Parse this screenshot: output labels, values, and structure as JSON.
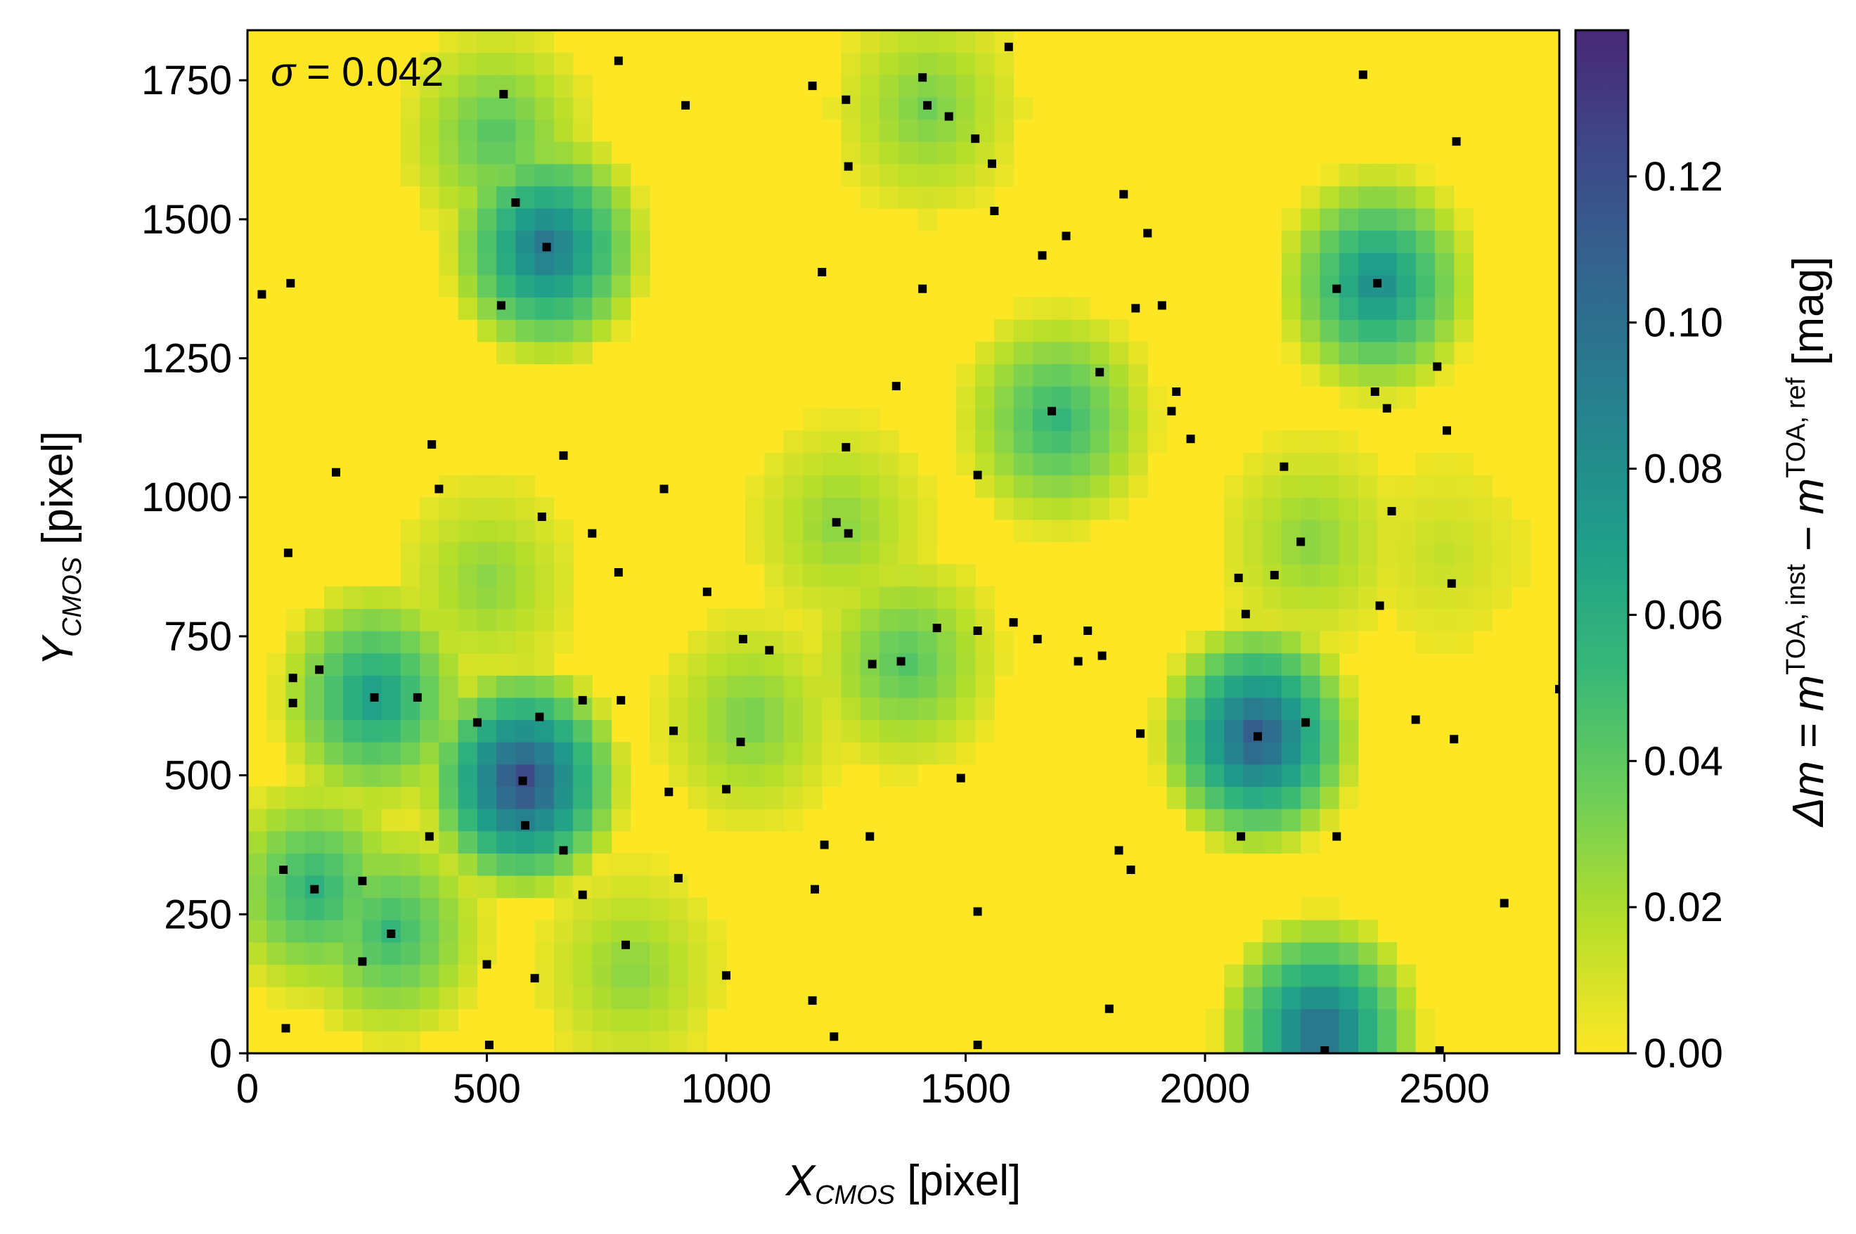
{
  "chart_data": {
    "type": "heatmap",
    "annotation": {
      "symbol": "σ",
      "text": " = 0.042"
    },
    "xlabel": {
      "main": "X",
      "sub": "CMOS",
      "rest": " [pixel]"
    },
    "ylabel": {
      "main": "Y",
      "sub": "CMOS",
      "rest": " [pixel]"
    },
    "xlim": [
      0,
      2740
    ],
    "ylim": [
      0,
      1840
    ],
    "xticks": [
      0,
      500,
      1000,
      1500,
      2000,
      2500
    ],
    "yticks": [
      0,
      250,
      500,
      750,
      1000,
      1250,
      1500,
      1750
    ],
    "colorbar": {
      "label": {
        "delta": "Δm = m",
        "sup1": "TOA, inst",
        "minus": " − m",
        "sup2": "TOA, ref",
        "unit": " [mag]"
      },
      "range": [
        0,
        0.14
      ],
      "ticks": [
        "0.00",
        "0.02",
        "0.04",
        "0.06",
        "0.08",
        "0.10",
        "0.12"
      ],
      "tick_values": [
        0,
        0.02,
        0.04,
        0.06,
        0.08,
        0.1,
        0.12
      ],
      "colormap": "viridis_r"
    },
    "hotspots": [
      {
        "x": 575,
        "y": 490,
        "value": 0.128
      },
      {
        "x": 2110,
        "y": 570,
        "value": 0.118
      },
      {
        "x": 2240,
        "y": 40,
        "value": 0.108
      },
      {
        "x": 625,
        "y": 1450,
        "value": 0.1
      },
      {
        "x": 2360,
        "y": 1385,
        "value": 0.085
      },
      {
        "x": 265,
        "y": 640,
        "value": 0.075
      },
      {
        "x": 1690,
        "y": 1140,
        "value": 0.058
      },
      {
        "x": 140,
        "y": 295,
        "value": 0.06
      },
      {
        "x": 300,
        "y": 220,
        "value": 0.055
      },
      {
        "x": 520,
        "y": 1650,
        "value": 0.045
      },
      {
        "x": 1420,
        "y": 1700,
        "value": 0.035
      },
      {
        "x": 1375,
        "y": 705,
        "value": 0.045
      },
      {
        "x": 2220,
        "y": 920,
        "value": 0.03
      },
      {
        "x": 1050,
        "y": 600,
        "value": 0.035
      },
      {
        "x": 800,
        "y": 150,
        "value": 0.03
      },
      {
        "x": 500,
        "y": 850,
        "value": 0.03
      },
      {
        "x": 2500,
        "y": 900,
        "value": 0.015
      },
      {
        "x": 1240,
        "y": 950,
        "value": 0.03
      }
    ],
    "points": [
      [
        30,
        1365
      ],
      [
        90,
        1385
      ],
      [
        535,
        1725
      ],
      [
        560,
        1530
      ],
      [
        625,
        1450
      ],
      [
        530,
        1345
      ],
      [
        385,
        1095
      ],
      [
        400,
        1015
      ],
      [
        185,
        1045
      ],
      [
        660,
        1075
      ],
      [
        615,
        965
      ],
      [
        720,
        935
      ],
      [
        85,
        900
      ],
      [
        95,
        675
      ],
      [
        95,
        630
      ],
      [
        150,
        690
      ],
      [
        265,
        640
      ],
      [
        355,
        640
      ],
      [
        480,
        595
      ],
      [
        610,
        605
      ],
      [
        700,
        635
      ],
      [
        780,
        635
      ],
      [
        575,
        490
      ],
      [
        580,
        410
      ],
      [
        380,
        390
      ],
      [
        660,
        365
      ],
      [
        700,
        285
      ],
      [
        75,
        330
      ],
      [
        140,
        295
      ],
      [
        240,
        310
      ],
      [
        300,
        215
      ],
      [
        240,
        165
      ],
      [
        500,
        160
      ],
      [
        600,
        135
      ],
      [
        80,
        45
      ],
      [
        505,
        15
      ],
      [
        775,
        1785
      ],
      [
        915,
        1705
      ],
      [
        1180,
        1740
      ],
      [
        1250,
        1715
      ],
      [
        1255,
        1595
      ],
      [
        1410,
        1755
      ],
      [
        1420,
        1705
      ],
      [
        1465,
        1685
      ],
      [
        1520,
        1645
      ],
      [
        1555,
        1600
      ],
      [
        1560,
        1515
      ],
      [
        1590,
        1810
      ],
      [
        1200,
        1405
      ],
      [
        1410,
        1375
      ],
      [
        1355,
        1200
      ],
      [
        1250,
        1090
      ],
      [
        1525,
        1040
      ],
      [
        870,
        1015
      ],
      [
        775,
        865
      ],
      [
        960,
        830
      ],
      [
        1035,
        745
      ],
      [
        1090,
        725
      ],
      [
        1230,
        955
      ],
      [
        1255,
        935
      ],
      [
        1305,
        700
      ],
      [
        1365,
        705
      ],
      [
        1440,
        765
      ],
      [
        1525,
        760
      ],
      [
        1600,
        775
      ],
      [
        1650,
        745
      ],
      [
        1735,
        705
      ],
      [
        1755,
        760
      ],
      [
        1785,
        715
      ],
      [
        890,
        580
      ],
      [
        880,
        470
      ],
      [
        1030,
        560
      ],
      [
        1000,
        475
      ],
      [
        1490,
        495
      ],
      [
        900,
        315
      ],
      [
        790,
        195
      ],
      [
        1185,
        295
      ],
      [
        1205,
        375
      ],
      [
        1300,
        390
      ],
      [
        1525,
        255
      ],
      [
        1180,
        95
      ],
      [
        1225,
        30
      ],
      [
        1000,
        140
      ],
      [
        1525,
        15
      ],
      [
        1660,
        1435
      ],
      [
        1710,
        1470
      ],
      [
        1680,
        1155
      ],
      [
        1780,
        1225
      ],
      [
        1830,
        1545
      ],
      [
        1880,
        1475
      ],
      [
        1855,
        1340
      ],
      [
        1910,
        1345
      ],
      [
        1940,
        1190
      ],
      [
        1930,
        1155
      ],
      [
        1970,
        1105
      ],
      [
        2165,
        1055
      ],
      [
        2200,
        920
      ],
      [
        2070,
        855
      ],
      [
        2145,
        860
      ],
      [
        2085,
        790
      ],
      [
        2110,
        570
      ],
      [
        2210,
        595
      ],
      [
        2075,
        390
      ],
      [
        2275,
        390
      ],
      [
        1865,
        575
      ],
      [
        1820,
        365
      ],
      [
        1845,
        330
      ],
      [
        1800,
        80
      ],
      [
        2250,
        5
      ],
      [
        2490,
        5
      ],
      [
        2330,
        1760
      ],
      [
        2525,
        1640
      ],
      [
        2275,
        1375
      ],
      [
        2360,
        1385
      ],
      [
        2355,
        1190
      ],
      [
        2380,
        1160
      ],
      [
        2485,
        1235
      ],
      [
        2505,
        1120
      ],
      [
        2390,
        975
      ],
      [
        2365,
        805
      ],
      [
        2515,
        845
      ],
      [
        2440,
        600
      ],
      [
        2520,
        565
      ],
      [
        2625,
        270
      ],
      [
        2740,
        655
      ]
    ]
  }
}
